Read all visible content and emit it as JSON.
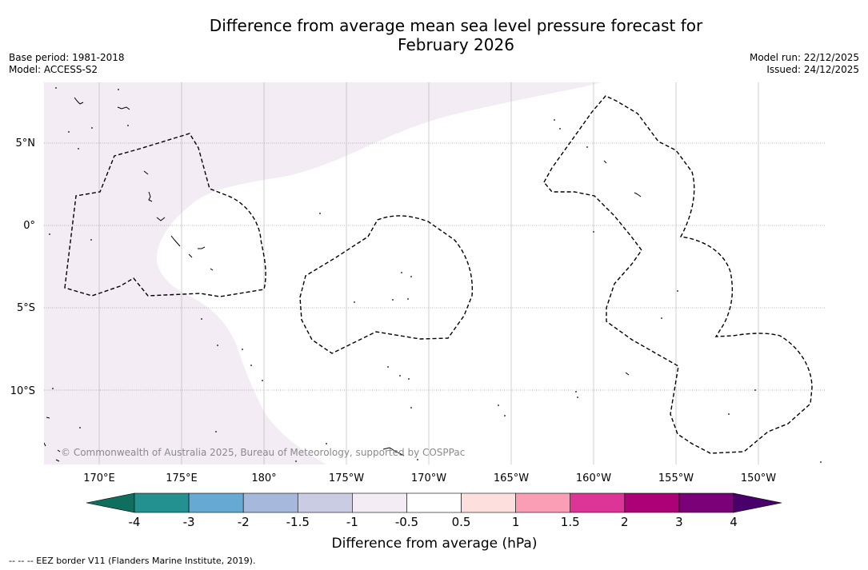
{
  "header": {
    "title_line1": "Difference from average mean sea level pressure forecast for",
    "title_line2": "February 2026",
    "base_period": "Base period: 1981-2018",
    "model": "Model: ACCESS-S2",
    "model_run": "Model run: 22/12/2025",
    "issued": "Issued: 24/12/2025"
  },
  "map": {
    "lat_labels": [
      "5°N",
      "0°",
      "5°S",
      "10°S"
    ],
    "lon_labels": [
      "170°E",
      "175°E",
      "180°",
      "175°W",
      "170°W",
      "165°W",
      "160°W",
      "155°W",
      "150°W"
    ],
    "copyright": "© Commonwealth of Australia 2025, Bureau of Meteorology, supported by COSPPac",
    "anomaly_region": "-1 to -0.5",
    "anomaly_color": "#f3ecf5"
  },
  "colorbar": {
    "title": "Difference from average (hPa)",
    "ticks": [
      "-4",
      "-3",
      "-2",
      "-1.5",
      "-1",
      "-0.5",
      "0.5",
      "1",
      "1.5",
      "2",
      "3",
      "4"
    ],
    "colors": [
      "#23918f",
      "#66a9d2",
      "#a6b8db",
      "#cacce3",
      "#f3ecf5",
      "#ffffff",
      "#fde0dd",
      "#f99eb5",
      "#dd3597",
      "#ad0178",
      "#7a0177"
    ],
    "extend_low_color": "#0f6e5e",
    "extend_high_color": "#49006a"
  },
  "footer": {
    "legend_text": "--  --  -- EEZ border V11 (Flanders Marine Institute, 2019)."
  }
}
